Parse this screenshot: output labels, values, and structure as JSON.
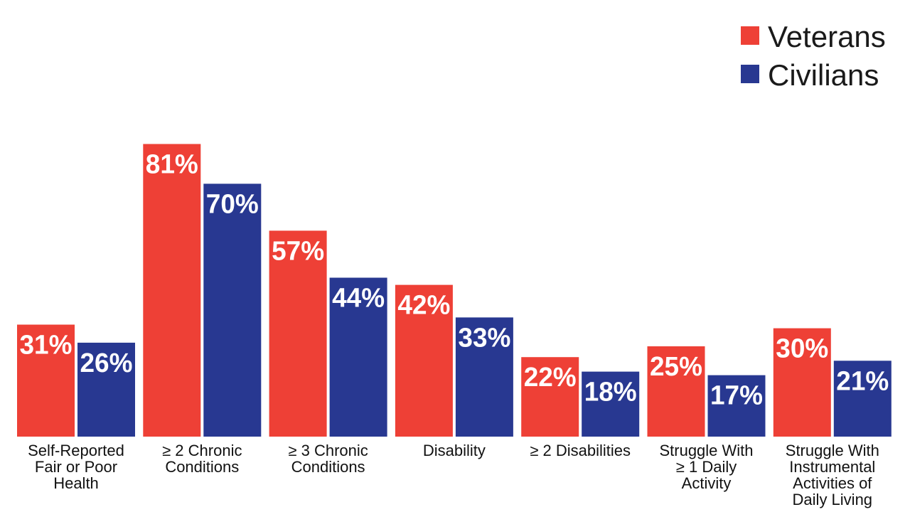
{
  "chart_data": {
    "type": "bar",
    "categories": [
      "Self-Reported Fair or Poor Health",
      "≥ 2 Chronic Conditions",
      "≥ 3 Chronic Conditions",
      "Disability",
      "≥ 2 Disabilities",
      "Struggle With ≥ 1 Daily Activity",
      "Struggle With Instrumental Activities of Daily Living"
    ],
    "category_lines": [
      [
        "Self-Reported",
        "Fair or Poor",
        "Health"
      ],
      [
        "≥ 2 Chronic",
        "Conditions"
      ],
      [
        "≥ 3 Chronic",
        "Conditions"
      ],
      [
        "Disability"
      ],
      [
        "≥ 2 Disabilities"
      ],
      [
        "Struggle With",
        "≥ 1 Daily",
        "Activity"
      ],
      [
        "Struggle With",
        "Instrumental",
        "Activities of",
        "Daily Living"
      ]
    ],
    "series": [
      {
        "name": "Veterans",
        "color": "#ee4036",
        "values": [
          31,
          81,
          57,
          42,
          22,
          25,
          30
        ],
        "labels": [
          "31%",
          "81%",
          "57%",
          "42%",
          "22%",
          "25%",
          "30%"
        ]
      },
      {
        "name": "Civilians",
        "color": "#283891",
        "values": [
          26,
          70,
          44,
          33,
          18,
          17,
          21
        ],
        "labels": [
          "26%",
          "70%",
          "44%",
          "33%",
          "18%",
          "17%",
          "21%"
        ]
      }
    ],
    "ylim": [
      0,
      100
    ],
    "grid": false,
    "legend": "top-right",
    "title": "",
    "xlabel": "",
    "ylabel": ""
  }
}
